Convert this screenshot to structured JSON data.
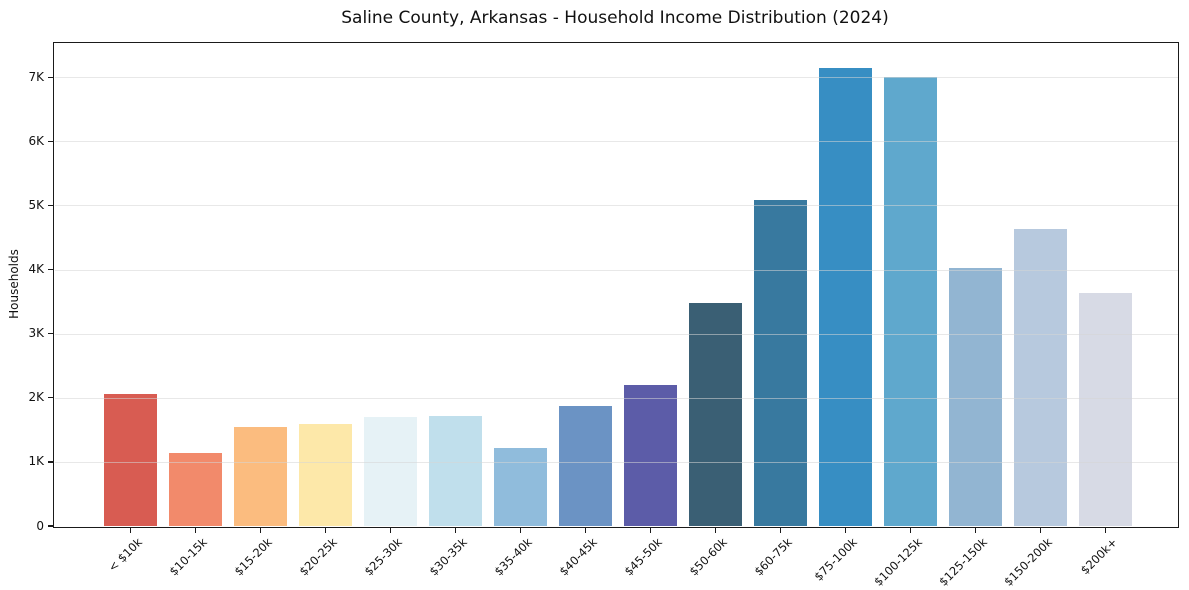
{
  "title": "Saline County, Arkansas - Household Income Distribution (2024)",
  "chart_data": {
    "type": "bar",
    "title": "Saline County, Arkansas - Household Income Distribution (2024)",
    "xlabel": "",
    "ylabel": "Households",
    "ylim": [
      0,
      7550
    ],
    "grid": "horizontal",
    "legend": "none",
    "yticks": [
      {
        "value": 0,
        "label": "0"
      },
      {
        "value": 1000,
        "label": "1K"
      },
      {
        "value": 2000,
        "label": "2K"
      },
      {
        "value": 3000,
        "label": "3K"
      },
      {
        "value": 4000,
        "label": "4K"
      },
      {
        "value": 5000,
        "label": "5K"
      },
      {
        "value": 6000,
        "label": "6K"
      },
      {
        "value": 7000,
        "label": "7K"
      }
    ],
    "categories": [
      "< $10k",
      "$10-15k",
      "$15-20k",
      "$20-25k",
      "$25-30k",
      "$30-35k",
      "$35-40k",
      "$40-45k",
      "$45-50k",
      "$50-60k",
      "$60-75k",
      "$75-100k",
      "$100-125k",
      "$125-150k",
      "$150-200k",
      "$200k+"
    ],
    "values": [
      2060,
      1140,
      1540,
      1590,
      1700,
      1710,
      1220,
      1870,
      2200,
      3480,
      5080,
      7140,
      7000,
      4020,
      4630,
      3630
    ],
    "bar_colors": [
      "#d85c52",
      "#f28a6b",
      "#fbbc7f",
      "#fde8a9",
      "#e6f2f6",
      "#c0dfec",
      "#90bcdc",
      "#6b93c4",
      "#5c5ca8",
      "#3a5f74",
      "#38799f",
      "#378ec3",
      "#5fa8cd",
      "#92b5d2",
      "#b7c9de",
      "#d7dae5"
    ]
  }
}
